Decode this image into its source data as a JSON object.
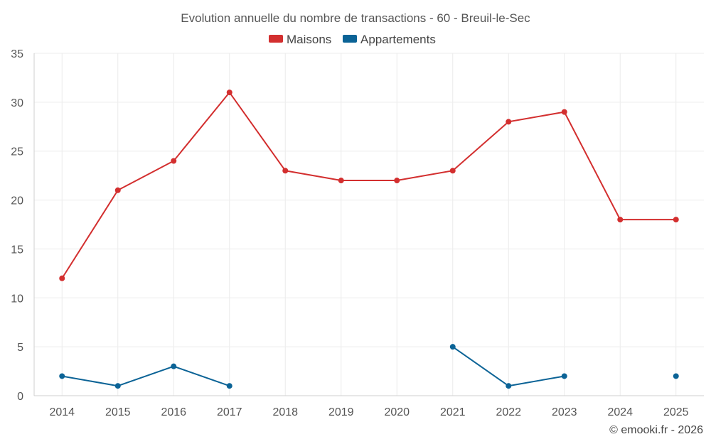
{
  "chart_data": {
    "type": "line",
    "title": "Evolution annuelle du nombre de transactions - 60 - Breuil-le-Sec",
    "categories": [
      "2014",
      "2015",
      "2016",
      "2017",
      "2018",
      "2019",
      "2020",
      "2021",
      "2022",
      "2023",
      "2024",
      "2025"
    ],
    "ylim": [
      0,
      35
    ],
    "yticks": [
      0,
      5,
      10,
      15,
      20,
      25,
      30,
      35
    ],
    "ytick_labels": [
      "0",
      "5",
      "10",
      "15",
      "20",
      "25",
      "30",
      "35"
    ],
    "grid": true,
    "legend_position": "top-center",
    "series": [
      {
        "name": "Maisons",
        "color": "#d32f2f",
        "values": [
          12,
          21,
          24,
          31,
          23,
          22,
          22,
          23,
          28,
          29,
          18,
          18
        ]
      },
      {
        "name": "Appartements",
        "color": "#0b6396",
        "values": [
          2,
          1,
          3,
          1,
          null,
          null,
          null,
          5,
          1,
          2,
          null,
          2
        ]
      }
    ],
    "xlabel": "",
    "ylabel": ""
  },
  "credit": "© emooki.fr - 2026"
}
